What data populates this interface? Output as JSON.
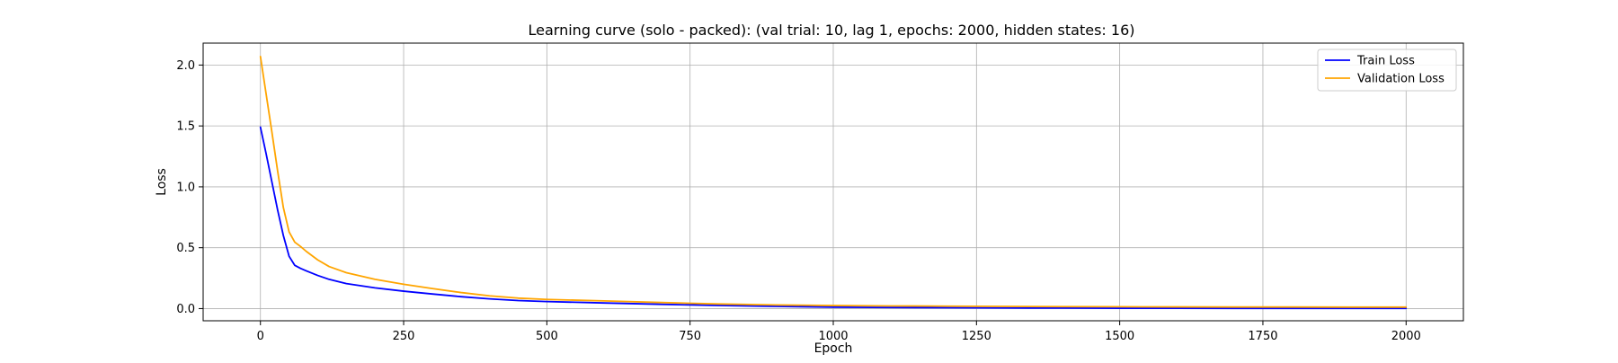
{
  "chart_data": {
    "type": "line",
    "title": "Learning curve (solo - packed): (val trial: 10, lag 1, epochs: 2000, hidden states: 16)",
    "xlabel": "Epoch",
    "ylabel": "Loss",
    "xlim": [
      -100,
      2100
    ],
    "ylim": [
      -0.1,
      2.18
    ],
    "xticks": [
      0,
      250,
      500,
      750,
      1000,
      1250,
      1500,
      1750,
      2000
    ],
    "xtick_labels": [
      "0",
      "250",
      "500",
      "750",
      "1000",
      "1250",
      "1500",
      "1750",
      "2000"
    ],
    "yticks": [
      0.0,
      0.5,
      1.0,
      1.5,
      2.0
    ],
    "ytick_labels": [
      "0.0",
      "0.5",
      "1.0",
      "1.5",
      "2.0"
    ],
    "grid": true,
    "legend_position": "top-right",
    "series": [
      {
        "name": "Train Loss",
        "color": "#0000ff",
        "x": [
          0,
          10,
          20,
          30,
          40,
          50,
          60,
          70,
          80,
          100,
          120,
          150,
          200,
          250,
          300,
          350,
          400,
          450,
          500,
          600,
          700,
          800,
          900,
          1000,
          1100,
          1200,
          1300,
          1400,
          1500,
          1600,
          1700,
          1800,
          1900,
          2000
        ],
        "y": [
          1.49,
          1.27,
          1.04,
          0.81,
          0.6,
          0.43,
          0.355,
          0.33,
          0.31,
          0.272,
          0.24,
          0.205,
          0.17,
          0.143,
          0.12,
          0.098,
          0.08,
          0.066,
          0.058,
          0.046,
          0.035,
          0.026,
          0.018,
          0.012,
          0.009,
          0.007,
          0.005,
          0.004,
          0.003,
          0.003,
          0.002,
          0.002,
          0.002,
          0.002
        ]
      },
      {
        "name": "Validation Loss",
        "color": "#ffa500",
        "x": [
          0,
          10,
          20,
          30,
          40,
          50,
          60,
          70,
          80,
          100,
          120,
          150,
          200,
          250,
          300,
          350,
          400,
          450,
          500,
          600,
          700,
          800,
          900,
          1000,
          1100,
          1200,
          1300,
          1400,
          1500,
          1600,
          1700,
          1800,
          1900,
          2000
        ],
        "y": [
          2.07,
          1.76,
          1.45,
          1.13,
          0.83,
          0.63,
          0.545,
          0.51,
          0.47,
          0.4,
          0.345,
          0.295,
          0.24,
          0.2,
          0.165,
          0.132,
          0.105,
          0.086,
          0.075,
          0.063,
          0.05,
          0.038,
          0.03,
          0.025,
          0.022,
          0.02,
          0.018,
          0.016,
          0.015,
          0.014,
          0.013,
          0.013,
          0.012,
          0.012
        ]
      }
    ]
  }
}
